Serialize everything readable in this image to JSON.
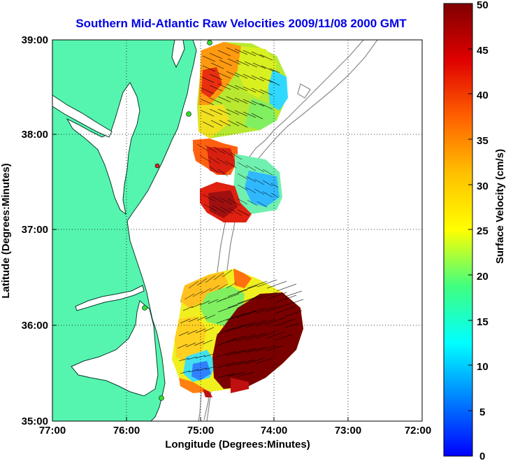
{
  "title": "Southern Mid-Atlantic Raw Velocities 2009/11/08 2000 GMT",
  "map": {
    "xlabel": "Longitude (Degrees:Minutes)",
    "ylabel": "Latitude (Degrees:Minutes)",
    "x_ticks": [
      "77:00",
      "76:00",
      "75:00",
      "74:00",
      "73:00",
      "72:00"
    ],
    "y_ticks": [
      "39:00",
      "38:00",
      "37:00",
      "36:00",
      "35:00"
    ],
    "lon_range": [
      -77,
      -72
    ],
    "lat_range": [
      35,
      39
    ],
    "land_color": "#55f5b0",
    "grid": "dotted"
  },
  "colorbar": {
    "label": "Surface Velocity (cm/s)",
    "ticks": [
      "50",
      "45",
      "40",
      "35",
      "30",
      "25",
      "20",
      "15",
      "10",
      "5",
      "0"
    ],
    "range": [
      0,
      50
    ],
    "colormap": "jet"
  }
}
